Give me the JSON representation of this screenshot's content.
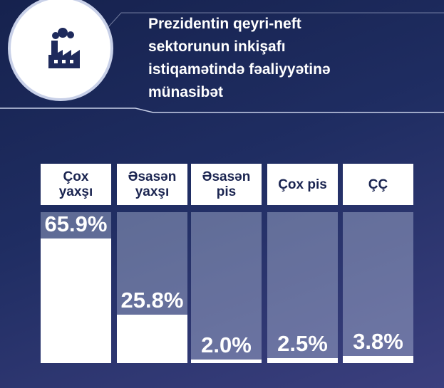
{
  "chart_data": {
    "type": "bar",
    "title": "Prezidentin qeyri-neft sektorunun inkişafı istiqamətində fəaliyyətinə münasibət",
    "categories": [
      "Çox yaxşı",
      "Əsasən yaxşı",
      "Əsasən pis",
      "Çox pis",
      "ÇÇ"
    ],
    "values": [
      65.9,
      25.8,
      2.0,
      2.5,
      3.8
    ],
    "value_labels": [
      "65.9%",
      "25.8%",
      "2.0%",
      "2.5%",
      "3.8%"
    ],
    "color": "#ffffff",
    "ylim": [
      0,
      80
    ]
  }
}
